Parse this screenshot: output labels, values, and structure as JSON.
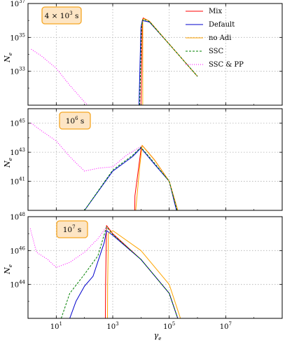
{
  "chart_data": [
    {
      "type": "line",
      "panel_label": "4 × 10³ s",
      "panel_label_parts": {
        "mant": "4 × 10",
        "exp": "3",
        "unit": " s"
      },
      "ylabel": "N",
      "ylabel_sub": "e",
      "xscale": "log",
      "yscale": "log",
      "xlim": [
        1,
        1000000000.0
      ],
      "ylim": [
        1e+31,
        1e+37
      ],
      "yticks": [
        {
          "base": "10",
          "exp": "33",
          "v": 1e+33
        },
        {
          "base": "10",
          "exp": "35",
          "v": 1e+35
        },
        {
          "base": "10",
          "exp": "37",
          "v": 1e+37
        }
      ],
      "grid": true,
      "legend": {
        "placement": "top-right",
        "entries": [
          "Mix",
          "Default",
          "no Adi",
          "SSC",
          "SSC & PP"
        ]
      },
      "series": [
        {
          "name": "Mix",
          "color": "#ff0000",
          "style": "solid",
          "x": [
            10000,
            11200,
            12000,
            20000,
            100000,
            1000000
          ],
          "y": [
            1e+31,
            1e+36,
            1.4e+36,
            9e+35,
            4e+34,
            5e+32
          ]
        },
        {
          "name": "Default",
          "color": "#0000cc",
          "style": "solid",
          "x": [
            8500,
            10000,
            11200,
            20000,
            100000,
            1000000
          ],
          "y": [
            1e+31,
            4e+35,
            1e+36,
            8e+35,
            4e+34,
            5e+32
          ]
        },
        {
          "name": "no Adi",
          "color": "#ffa500",
          "style": "solid",
          "x": [
            11500,
            11600,
            12500,
            20000,
            100000,
            1000000
          ],
          "y": [
            1e+31,
            1e+36,
            1.3e+36,
            9e+35,
            4e+34,
            5e+32
          ]
        },
        {
          "name": "SSC",
          "color": "#008000",
          "style": "dashed",
          "x": [
            9000,
            10500,
            12000,
            20000,
            100000,
            1000000
          ],
          "y": [
            1e+31,
            5e+35,
            1.2e+36,
            8.5e+35,
            4e+34,
            5e+32
          ]
        },
        {
          "name": "SSC & PP",
          "color": "#ff00ff",
          "style": "dotted",
          "x": [
            1.3,
            3,
            10,
            30,
            100,
            130
          ],
          "y": [
            2e+34,
            8e+33,
            1.5e+33,
            1.5e+32,
            1.5e+31,
            1e+31
          ]
        }
      ]
    },
    {
      "type": "line",
      "panel_label": "10⁶ s",
      "panel_label_parts": {
        "mant": "10",
        "exp": "6",
        "unit": " s"
      },
      "ylabel": "N",
      "ylabel_sub": "e",
      "xscale": "log",
      "yscale": "log",
      "xlim": [
        1,
        1000000000.0
      ],
      "ylim": [
        1e+39,
        1e+46
      ],
      "yticks": [
        {
          "base": "10",
          "exp": "41",
          "v": 1e+41
        },
        {
          "base": "10",
          "exp": "43",
          "v": 1e+43
        },
        {
          "base": "10",
          "exp": "45",
          "v": 1e+45
        }
      ],
      "grid": true,
      "series": [
        {
          "name": "Mix",
          "color": "#ff0000",
          "style": "solid",
          "x": [
            6000,
            6100,
            10000,
            11000,
            30000,
            100000,
            200000
          ],
          "y": [
            1e+39,
            1e+40,
            1.5e+43,
            3e+43,
            3e+42,
            1e+41,
            1e+39
          ]
        },
        {
          "name": "Default",
          "color": "#0000cc",
          "style": "solid",
          "x": [
            100,
            1000,
            5000,
            10000,
            30000,
            100000,
            180000
          ],
          "y": [
            1e+39,
            5e+41,
            5e+42,
            2e+43,
            1.5e+42,
            1e+41,
            1e+39
          ]
        },
        {
          "name": "no Adi",
          "color": "#ffa500",
          "style": "solid",
          "x": [
            6500,
            9000,
            11000,
            30000,
            100000,
            200000
          ],
          "y": [
            1e+39,
            1e+42,
            3e+43,
            3e+42,
            1e+41,
            1e+39
          ]
        },
        {
          "name": "SSC",
          "color": "#008000",
          "style": "dashed",
          "x": [
            100,
            1000,
            5000,
            10000,
            30000,
            100000,
            190000
          ],
          "y": [
            1e+39,
            6e+41,
            6e+42,
            2.2e+43,
            1.8e+42,
            1e+41,
            1e+39
          ]
        },
        {
          "name": "SSC & PP",
          "color": "#ff00ff",
          "style": "dotted",
          "x": [
            1.3,
            3,
            10,
            30,
            100,
            300,
            1000,
            3000,
            10000
          ],
          "y": [
            1e+45,
            3e+44,
            6e+43,
            5e+42,
            5e+41,
            8e+41,
            1e+42,
            6e+42,
            2.5e+43
          ]
        }
      ]
    },
    {
      "type": "line",
      "panel_label": "10⁷ s",
      "panel_label_parts": {
        "mant": "10",
        "exp": "7",
        "unit": " s"
      },
      "ylabel": "N",
      "ylabel_sub": "e",
      "xlabel": "γ",
      "xlabel_sub": "e",
      "xscale": "log",
      "yscale": "log",
      "xlim": [
        1,
        1000000000.0
      ],
      "ylim": [
        1e+42,
        1e+48
      ],
      "yticks": [
        {
          "base": "10",
          "exp": "44",
          "v": 1e+44
        },
        {
          "base": "10",
          "exp": "46",
          "v": 1e+46
        },
        {
          "base": "10",
          "exp": "48",
          "v": 1e+48
        }
      ],
      "xticks": [
        {
          "base": "10",
          "exp": "1",
          "v": 10
        },
        {
          "base": "10",
          "exp": "3",
          "v": 1000
        },
        {
          "base": "10",
          "exp": "5",
          "v": 100000
        },
        {
          "base": "10",
          "exp": "7",
          "v": 10000000
        }
      ],
      "grid": true,
      "series": [
        {
          "name": "Mix",
          "color": "#ff0000",
          "style": "solid",
          "x": [
            550,
            560,
            600,
            1000,
            10000,
            100000,
            200000
          ],
          "y": [
            1e+42,
            1e+44,
            3e+47,
            1e+47,
            3e+45,
            3e+43,
            1e+42
          ]
        },
        {
          "name": "Default",
          "color": "#0000cc",
          "style": "solid",
          "x": [
            30,
            50,
            100,
            200,
            500,
            600,
            1000,
            10000,
            100000,
            200000
          ],
          "y": [
            1e+42,
            1e+43,
            8e+43,
            3e+44,
            3e+46,
            1.5e+47,
            8e+46,
            3e+45,
            3e+43,
            1e+42
          ]
        },
        {
          "name": "no Adi",
          "color": "#ffa500",
          "style": "solid",
          "x": [
            650,
            660,
            700,
            1000,
            10000,
            100000,
            250000
          ],
          "y": [
            1e+42,
            1e+44,
            1e+47,
            1.5e+47,
            1e+46,
            1e+44,
            1e+42
          ]
        },
        {
          "name": "SSC",
          "color": "#008000",
          "style": "dashed",
          "x": [
            15,
            30,
            100,
            300,
            600,
            1000,
            10000,
            100000,
            200000
          ],
          "y": [
            1e+42,
            3e+43,
            4e+44,
            5e+45,
            2.5e+47,
            9e+46,
            3e+45,
            3e+43,
            1e+42
          ]
        },
        {
          "name": "SSC & PP",
          "color": "#ff00ff",
          "style": "dotted",
          "x": [
            1.2,
            2,
            5,
            10,
            30,
            100,
            300,
            600
          ],
          "y": [
            2e+47,
            8e+45,
            3e+45,
            1e+45,
            2e+45,
            8e+45,
            5e+46,
            2.5e+47
          ]
        }
      ]
    }
  ]
}
